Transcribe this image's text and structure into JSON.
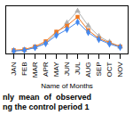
{
  "chart_data": {
    "type": "line",
    "xlabel": "Name of Months",
    "caption": [
      "nly  mean  of  observed",
      "ng the control period 1"
    ],
    "categories": [
      "JAN",
      "FEB",
      "MAR",
      "APR",
      "MAY",
      "JUN",
      "JUL",
      "AUG",
      "SEP",
      "OCT",
      "NOV"
    ],
    "series": [
      {
        "color": "#b0b0b0",
        "marker": "triangle",
        "values": [
          0.4,
          0.5,
          0.9,
          1.5,
          2.8,
          4.2,
          5.8,
          3.8,
          2.4,
          1.6,
          1.0
        ]
      },
      {
        "color": "#f07820",
        "marker": "square",
        "values": [
          0.5,
          0.6,
          1.0,
          1.7,
          3.0,
          3.8,
          5.0,
          3.2,
          2.1,
          1.5,
          1.0
        ]
      },
      {
        "color": "#4488ee",
        "marker": "diamond",
        "values": [
          0.4,
          0.5,
          0.85,
          1.4,
          2.5,
          3.3,
          4.3,
          2.9,
          1.95,
          1.35,
          0.9
        ]
      }
    ],
    "ylim": [
      0,
      6.5
    ],
    "tick_labels": "x"
  }
}
